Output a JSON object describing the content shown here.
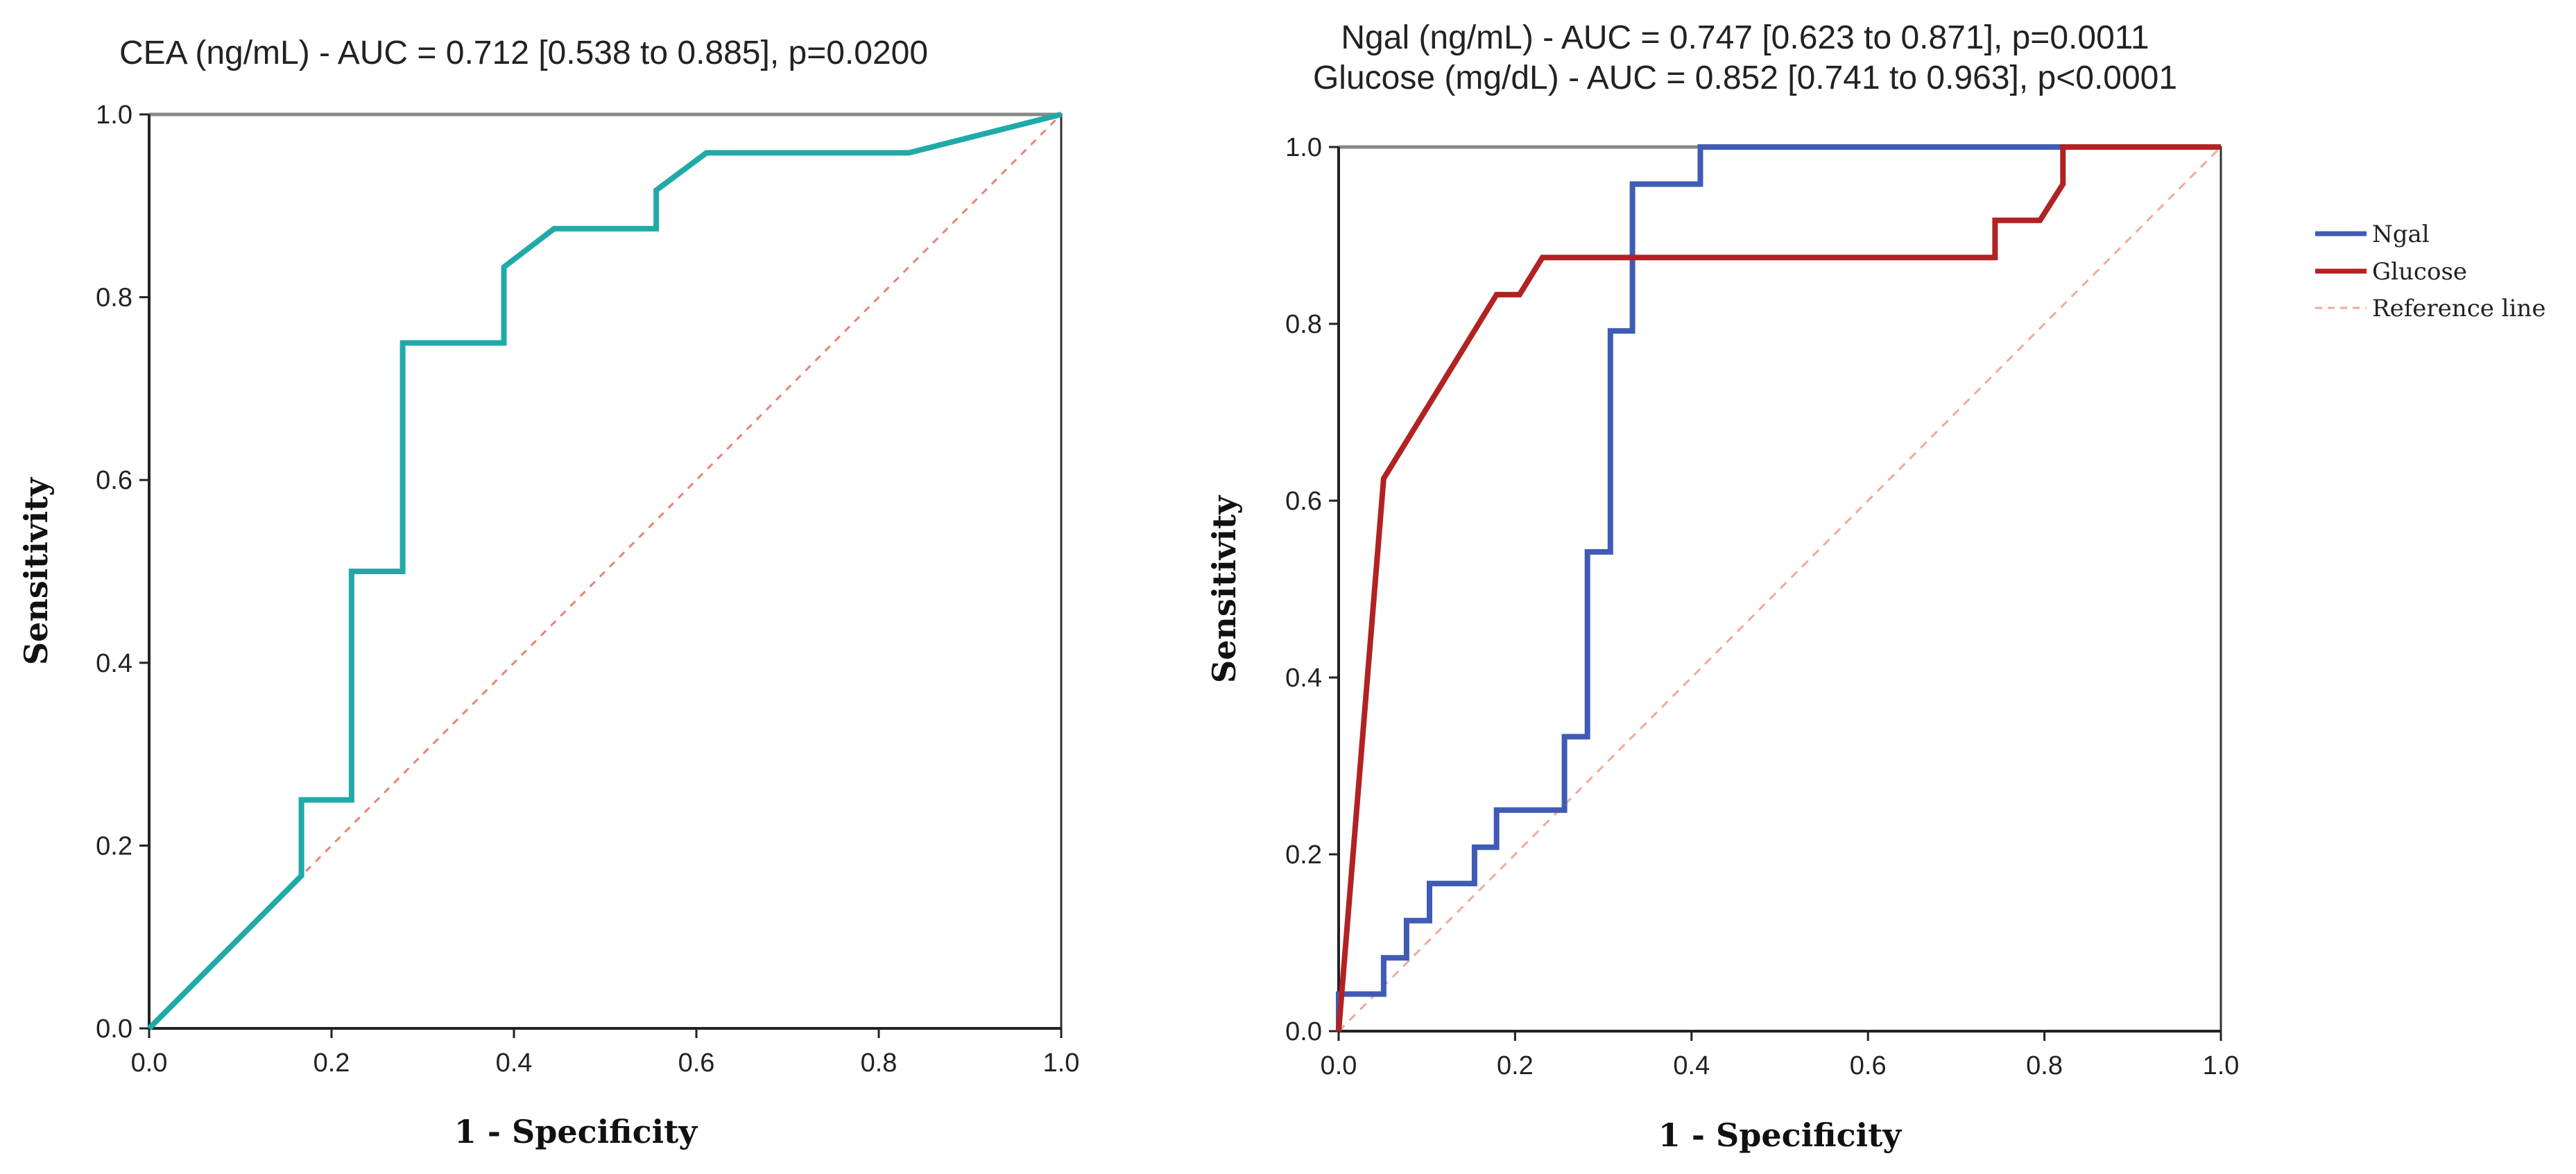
{
  "chart_data": [
    {
      "type": "line",
      "title": "CEA (ng/mL) - AUC = 0.712 [0.538 to 0.885], p=0.0200",
      "xlabel": "1 - Specificity",
      "ylabel": "Sensitivity",
      "xlim": [
        0,
        1
      ],
      "ylim": [
        0,
        1
      ],
      "xticks": [
        "0.0",
        "0.2",
        "0.4",
        "0.6",
        "0.8",
        "1.0"
      ],
      "yticks": [
        "0.0",
        "0.2",
        "0.4",
        "0.6",
        "0.8",
        "1.0"
      ],
      "series": [
        {
          "name": "CEA",
          "color": "#1FAAA8",
          "points": [
            [
              0,
              0
            ],
            [
              0.167,
              0.167
            ],
            [
              0.167,
              0.25
            ],
            [
              0.222,
              0.25
            ],
            [
              0.222,
              0.5
            ],
            [
              0.278,
              0.5
            ],
            [
              0.278,
              0.75
            ],
            [
              0.389,
              0.75
            ],
            [
              0.389,
              0.833
            ],
            [
              0.444,
              0.875
            ],
            [
              0.556,
              0.875
            ],
            [
              0.556,
              0.917
            ],
            [
              0.611,
              0.958
            ],
            [
              0.833,
              0.958
            ],
            [
              1,
              1
            ]
          ]
        },
        {
          "name": "Reference line",
          "color": "#F08070",
          "points": [
            [
              0,
              0
            ],
            [
              1,
              1
            ]
          ]
        }
      ]
    },
    {
      "type": "line",
      "title_line1": "Ngal (ng/mL) - AUC = 0.747 [0.623 to 0.871], p=0.0011",
      "title_line2": "Glucose (mg/dL) - AUC = 0.852 [0.741 to 0.963], p<0.0001",
      "xlabel": "1 - Specificity",
      "ylabel": "Sensitivity",
      "xlim": [
        0,
        1
      ],
      "ylim": [
        0,
        1
      ],
      "xticks": [
        "0.0",
        "0.2",
        "0.4",
        "0.6",
        "0.8",
        "1.0"
      ],
      "yticks": [
        "0.0",
        "0.2",
        "0.4",
        "0.6",
        "0.8",
        "1.0"
      ],
      "legend": [
        "Ngal",
        "Glucose",
        "Reference line"
      ],
      "series": [
        {
          "name": "Ngal",
          "color": "#3F5BB5",
          "points": [
            [
              0,
              0
            ],
            [
              0,
              0.042
            ],
            [
              0.051,
              0.042
            ],
            [
              0.051,
              0.083
            ],
            [
              0.077,
              0.083
            ],
            [
              0.077,
              0.125
            ],
            [
              0.103,
              0.125
            ],
            [
              0.103,
              0.167
            ],
            [
              0.154,
              0.167
            ],
            [
              0.154,
              0.208
            ],
            [
              0.179,
              0.208
            ],
            [
              0.179,
              0.25
            ],
            [
              0.256,
              0.25
            ],
            [
              0.256,
              0.333
            ],
            [
              0.282,
              0.333
            ],
            [
              0.282,
              0.542
            ],
            [
              0.308,
              0.542
            ],
            [
              0.308,
              0.792
            ],
            [
              0.333,
              0.792
            ],
            [
              0.333,
              0.958
            ],
            [
              0.41,
              0.958
            ],
            [
              0.41,
              1
            ],
            [
              1,
              1
            ]
          ]
        },
        {
          "name": "Glucose",
          "color": "#B22222",
          "points": [
            [
              0,
              0
            ],
            [
              0.051,
              0.625
            ],
            [
              0.179,
              0.833
            ],
            [
              0.205,
              0.833
            ],
            [
              0.231,
              0.875
            ],
            [
              0.744,
              0.875
            ],
            [
              0.744,
              0.917
            ],
            [
              0.795,
              0.917
            ],
            [
              0.821,
              0.958
            ],
            [
              0.821,
              1
            ],
            [
              1,
              1
            ]
          ]
        },
        {
          "name": "Reference line",
          "color": "#F4A89A",
          "points": [
            [
              0,
              0
            ],
            [
              1,
              1
            ]
          ]
        }
      ]
    }
  ]
}
